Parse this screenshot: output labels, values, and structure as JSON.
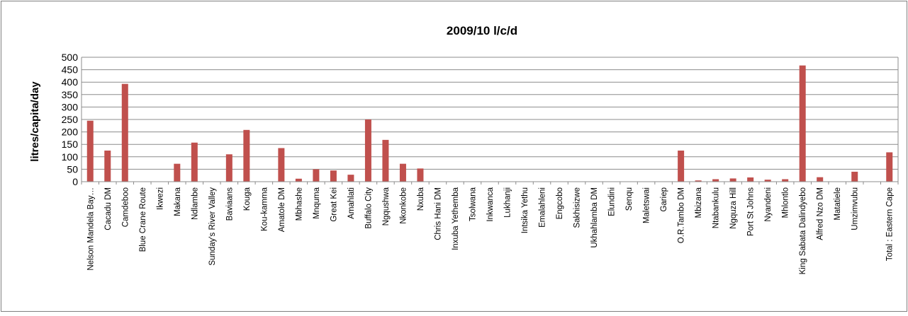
{
  "chart_data": {
    "type": "bar",
    "title": "2009/10 l/c/d",
    "xlabel": "",
    "ylabel": "litres/capita/day",
    "ylim": [
      0,
      500
    ],
    "yticks": [
      0,
      50,
      100,
      150,
      200,
      250,
      300,
      350,
      400,
      450,
      500
    ],
    "grid": true,
    "legend": "none",
    "bar_color": "#c0504d",
    "categories": [
      "Nelson Mandela Bay…",
      "Cacadu DM",
      "Camdeboo",
      "Blue Crane Route",
      "Ikwezi",
      "Makana",
      "Ndlambe",
      "Sunday's River Valley",
      "Baviaans",
      "Kouga",
      "Kou-kamma",
      "Amatole DM",
      "Mbhashe",
      "Mnquma",
      "Great Kei",
      "Amahlati",
      "Buffalo City",
      "Ngqushwa",
      "Nkonkobe",
      "Nxuba",
      "Chris Hani DM",
      "Inxuba Yethemba",
      "Tsolwana",
      "Inkwanca",
      "Lukhanji",
      "Intsika Yethu",
      "Emalahleni",
      "Engcobo",
      "Sakhisizwe",
      "Ukhahlamba DM",
      "Elundini",
      "Senqu",
      "Maletswai",
      "Gariep",
      "O.R.Tambo DM",
      "Mbizana",
      "Ntabankulu",
      "Ngquza Hill",
      "Port St Johns",
      "Nyandeni",
      "Mhlontlo",
      "King Sabata Dalindyebo",
      "Alfred Nzo DM",
      "Matatiele",
      "Umzimvubu",
      "",
      "Total : Eastern Cape"
    ],
    "values": [
      245,
      125,
      393,
      0,
      0,
      72,
      157,
      0,
      110,
      208,
      0,
      135,
      12,
      50,
      45,
      28,
      250,
      168,
      72,
      53,
      0,
      0,
      0,
      0,
      0,
      0,
      0,
      0,
      0,
      0,
      0,
      0,
      0,
      0,
      125,
      5,
      10,
      13,
      17,
      8,
      10,
      467,
      18,
      0,
      40,
      0,
      118
    ]
  }
}
